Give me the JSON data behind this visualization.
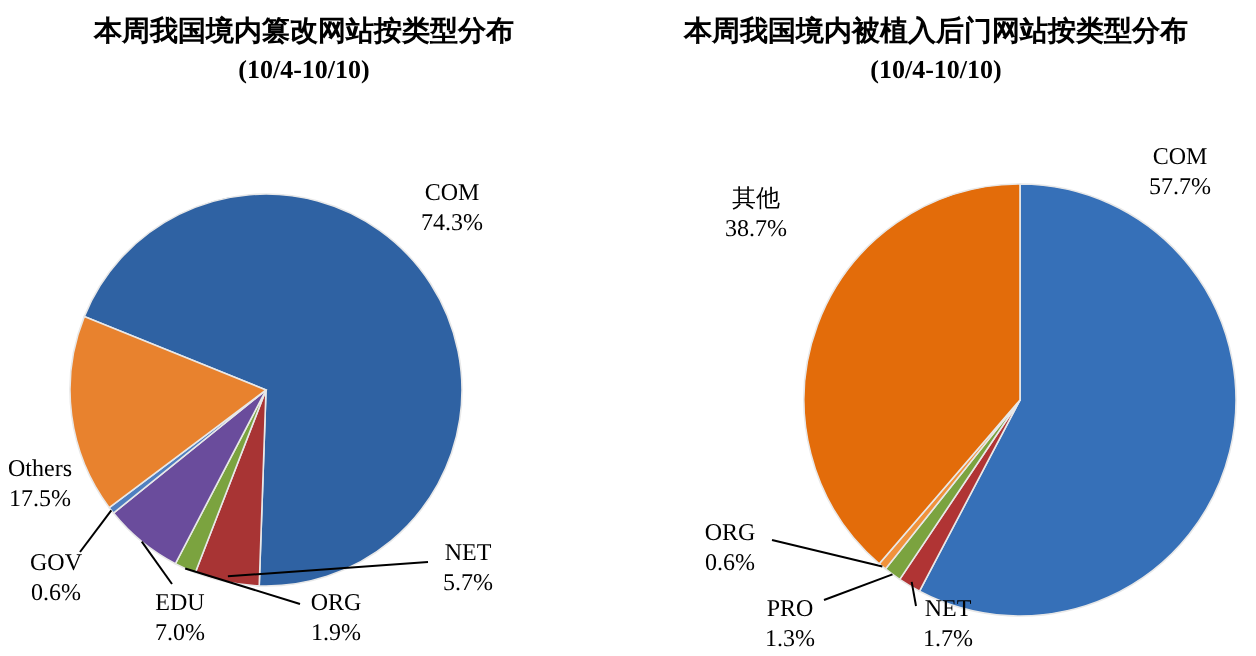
{
  "chart_data": [
    {
      "type": "pie",
      "title": "本周我国境内篡改网站按类型分布",
      "subtitle": "(10/4-10/10)",
      "categories": [
        "COM",
        "NET",
        "ORG",
        "EDU",
        "GOV",
        "Others"
      ],
      "values": [
        74.3,
        5.7,
        1.9,
        7.0,
        0.6,
        17.5
      ],
      "value_labels": [
        "74.3%",
        "5.7%",
        "1.9%",
        "7.0%",
        "0.6%",
        "17.5%"
      ],
      "colors": [
        "#2f62a3",
        "#a83434",
        "#7ba33f",
        "#6a4c9c",
        "#4f7fc0",
        "#e8822e"
      ]
    },
    {
      "type": "pie",
      "title": "本周我国境内被植入后门网站按类型分布",
      "subtitle": "(10/4-10/10)",
      "categories": [
        "COM",
        "NET",
        "PRO",
        "ORG",
        "其他"
      ],
      "values": [
        57.7,
        1.7,
        1.3,
        0.6,
        38.7
      ],
      "value_labels": [
        "57.7%",
        "1.7%",
        "1.3%",
        "0.6%",
        "38.7%"
      ],
      "colors": [
        "#3670b8",
        "#b03434",
        "#7ba33f",
        "#f0923c",
        "#e36c0a"
      ]
    }
  ]
}
